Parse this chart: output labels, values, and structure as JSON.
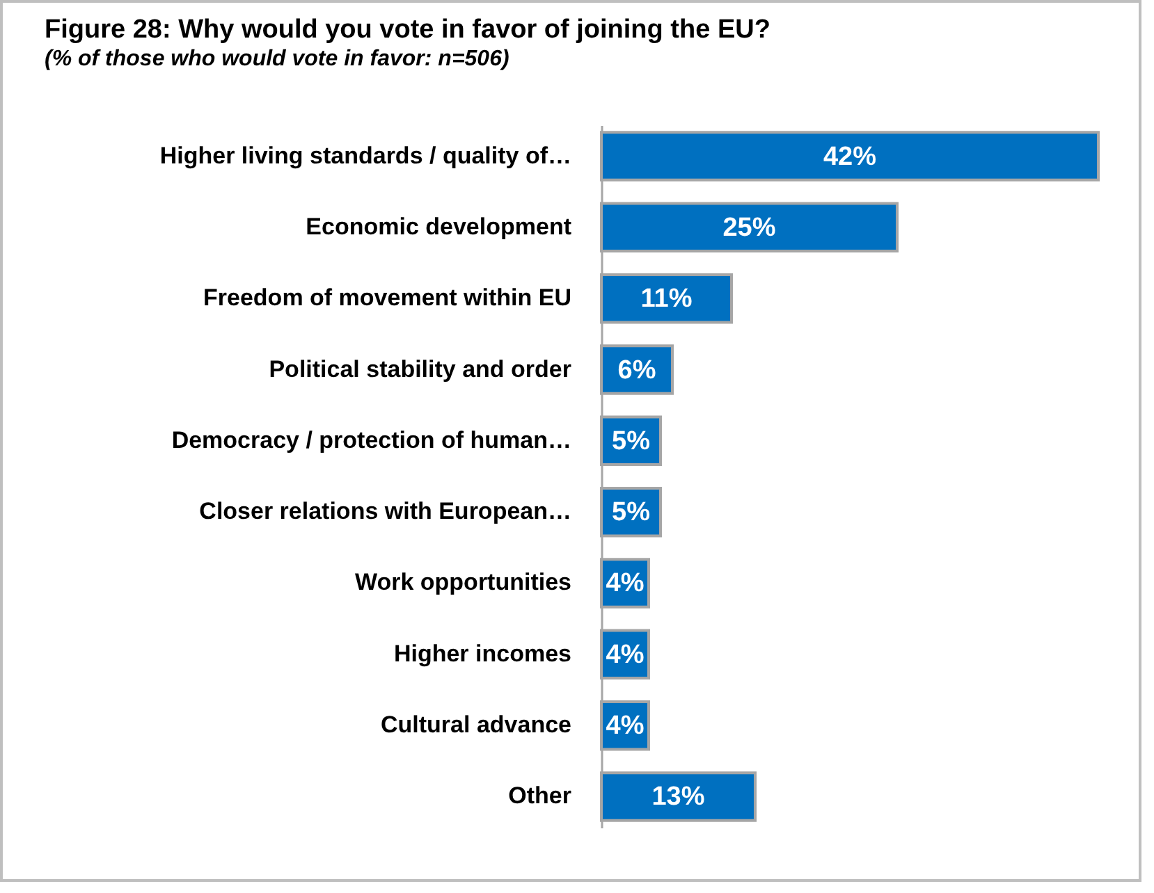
{
  "chart_data": {
    "type": "bar",
    "orientation": "horizontal",
    "title": "Figure 28: Why would you vote in favor of joining the EU?",
    "subtitle": "(% of those who would vote in favor: n=506)",
    "categories": [
      "Higher living standards / quality of…",
      "Economic development",
      "Freedom of movement within EU",
      "Political stability and order",
      "Democracy / protection of human…",
      "Closer relations with European…",
      "Work opportunities",
      "Higher incomes",
      "Cultural advance",
      "Other"
    ],
    "values": [
      42,
      25,
      11,
      6,
      5,
      5,
      4,
      4,
      4,
      13
    ],
    "value_labels": [
      "42%",
      "25%",
      "11%",
      "6%",
      "5%",
      "5%",
      "4%",
      "4%",
      "4%",
      "13%"
    ],
    "color": "#0070c0"
  }
}
